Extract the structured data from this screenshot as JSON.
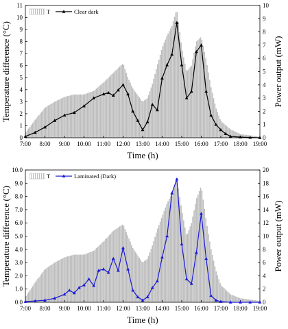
{
  "chart_data": [
    {
      "type": "bar",
      "x_ticks": [
        "7:00",
        "8:00",
        "9:00",
        "10:00",
        "11:00",
        "12:00",
        "13:00",
        "14:00",
        "15:00",
        "16:00",
        "17:00",
        "18:00",
        "19:00"
      ],
      "xlabel": "Time (h)",
      "ylabel_left": "Temperature difference (°C)",
      "ylabel_right": "Power output (mW)",
      "ylim_left": [
        0,
        11
      ],
      "ylim_right": [
        0,
        10
      ],
      "y_ticks_left": [
        0,
        1,
        2,
        3,
        4,
        5,
        6,
        7,
        8,
        9,
        10,
        11
      ],
      "y_ticks_right": [
        0,
        1,
        2,
        3,
        4,
        5,
        6,
        7,
        8,
        9,
        10
      ],
      "legend_position": "top-left",
      "colors": {
        "bars": "#bdbdbd",
        "line": "#000000"
      },
      "series": [
        {
          "name": "T",
          "kind": "bar",
          "axis": "left",
          "x_hours": [
            7,
            7.5,
            8,
            8.5,
            9,
            9.5,
            10,
            10.5,
            11,
            11.5,
            12,
            12.25,
            12.5,
            13,
            13.25,
            13.5,
            13.75,
            14,
            14.25,
            14.5,
            14.75,
            15,
            15.25,
            15.5,
            15.75,
            16,
            16.25,
            16.5,
            16.75,
            17,
            17.5,
            18,
            18.5,
            19
          ],
          "values": [
            0.4,
            1.5,
            2.5,
            3.0,
            3.4,
            3.6,
            3.6,
            3.9,
            4.6,
            5.4,
            6.2,
            5.0,
            4.1,
            3.0,
            3.3,
            4.5,
            6.0,
            7.5,
            8.5,
            9.3,
            10.7,
            7.5,
            5.5,
            6.0,
            8.0,
            8.4,
            6.5,
            4.2,
            2.5,
            1.4,
            0.7,
            0.3,
            0.2,
            0.1
          ]
        },
        {
          "name": "Clear dark",
          "kind": "line",
          "axis": "right",
          "x_hours": [
            7,
            7.5,
            8,
            8.5,
            9,
            9.5,
            10,
            10.5,
            11,
            11.25,
            11.5,
            11.75,
            12,
            12.25,
            12.5,
            12.75,
            13,
            13.25,
            13.5,
            13.75,
            14,
            14.25,
            14.5,
            14.75,
            15,
            15.25,
            15.5,
            15.75,
            16,
            16.25,
            16.5,
            16.75,
            17,
            17.25,
            17.5,
            18,
            18.5,
            19
          ],
          "values": [
            0.1,
            0.4,
            0.8,
            1.3,
            1.7,
            1.9,
            2.4,
            3.0,
            3.3,
            3.4,
            3.2,
            3.6,
            4.0,
            3.3,
            2.0,
            1.3,
            0.6,
            1.2,
            2.5,
            2.1,
            4.5,
            5.5,
            6.3,
            8.7,
            5.5,
            3.0,
            3.5,
            6.5,
            7.0,
            3.5,
            1.7,
            1.0,
            0.6,
            0.3,
            0.1,
            0.05,
            0.02,
            0.0
          ]
        }
      ]
    },
    {
      "type": "bar",
      "x_ticks": [
        "7:00",
        "8:00",
        "9:00",
        "10:00",
        "11:00",
        "12:00",
        "13:00",
        "14:00",
        "15:00",
        "16:00",
        "17:00",
        "18:00",
        "19:00"
      ],
      "xlabel": "Time (h)",
      "ylabel_left": "Temperature difference (°C)",
      "ylabel_right": "Power output (mW)",
      "ylim_left": [
        0,
        10
      ],
      "ylim_right": [
        0,
        20
      ],
      "y_ticks_left": [
        "0.0",
        "1.0",
        "2.0",
        "3.0",
        "4.0",
        "5.0",
        "6.0",
        "7.0",
        "8.0",
        "9.0",
        "10.0"
      ],
      "y_ticks_right": [
        0,
        2,
        4,
        6,
        8,
        10,
        12,
        14,
        16,
        18,
        20
      ],
      "legend_position": "top-left",
      "colors": {
        "bars": "#bdbdbd",
        "line": "#1a1ad6"
      },
      "series": [
        {
          "name": "T",
          "kind": "bar",
          "axis": "left",
          "x_hours": [
            7,
            7.5,
            8,
            8.5,
            9,
            9.5,
            10,
            10.5,
            11,
            11.5,
            12,
            12.25,
            12.5,
            13,
            13.25,
            13.5,
            13.75,
            14,
            14.25,
            14.5,
            14.75,
            15,
            15.25,
            15.5,
            15.75,
            16,
            16.25,
            16.5,
            16.75,
            17,
            17.5,
            18,
            18.5,
            19
          ],
          "values": [
            0.4,
            1.5,
            2.5,
            3.0,
            3.4,
            3.6,
            3.6,
            3.9,
            4.6,
            5.4,
            5.9,
            5.0,
            4.1,
            3.0,
            3.3,
            4.3,
            5.5,
            6.5,
            7.5,
            8.2,
            9.4,
            7.0,
            5.0,
            6.0,
            7.8,
            8.8,
            6.2,
            4.0,
            2.4,
            1.3,
            0.6,
            0.3,
            0.2,
            0.1
          ]
        },
        {
          "name": "Laminated (Dark)",
          "kind": "line",
          "axis": "right",
          "x_hours": [
            7,
            7.5,
            8,
            8.5,
            9,
            9.25,
            9.5,
            9.75,
            10,
            10.25,
            10.5,
            10.75,
            11,
            11.25,
            11.5,
            11.75,
            12,
            12.25,
            12.5,
            12.75,
            13,
            13.25,
            13.5,
            13.75,
            14,
            14.25,
            14.5,
            14.75,
            15,
            15.25,
            15.5,
            15.75,
            16,
            16.25,
            16.5,
            16.75,
            17,
            17.5,
            18,
            18.5,
            19
          ],
          "values": [
            0.1,
            0.2,
            0.3,
            0.6,
            1.2,
            1.8,
            1.4,
            2.2,
            2.6,
            3.5,
            2.5,
            4.8,
            5.0,
            4.5,
            6.6,
            4.8,
            8.2,
            5.0,
            1.8,
            0.8,
            0.3,
            0.8,
            2.2,
            3.2,
            6.8,
            10.0,
            16.5,
            18.6,
            8.8,
            3.5,
            2.8,
            7.5,
            13.4,
            6.6,
            1.0,
            0.3,
            0.1,
            0.0,
            0.0,
            0.0,
            0.0
          ]
        }
      ]
    }
  ]
}
